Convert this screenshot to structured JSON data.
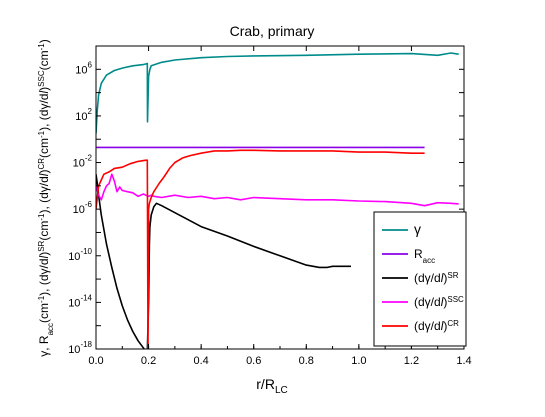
{
  "chart_data": {
    "type": "line",
    "title": "Crab, primary",
    "xlabel": {
      "main": "r/R",
      "sub": "LC"
    },
    "ylabel_parts": [
      {
        "t": "γ, R"
      },
      {
        "t": "acc",
        "s": "sub"
      },
      {
        "t": "(cm"
      },
      {
        "t": "-1",
        "s": "sup"
      },
      {
        "t": "), (dγ/d"
      },
      {
        "t": "l",
        "s": "italic"
      },
      {
        "t": ")"
      },
      {
        "t": "SR",
        "s": "sup"
      },
      {
        "t": "(cm"
      },
      {
        "t": "-1",
        "s": "sup"
      },
      {
        "t": "), (dγ/d"
      },
      {
        "t": "l",
        "s": "italic"
      },
      {
        "t": ")"
      },
      {
        "t": "CR",
        "s": "sup"
      },
      {
        "t": "(cm"
      },
      {
        "t": "-1",
        "s": "sup"
      },
      {
        "t": "), (dγ/d"
      },
      {
        "t": "l",
        "s": "italic"
      },
      {
        "t": ")"
      },
      {
        "t": "SSC",
        "s": "sup"
      },
      {
        "t": "(cm"
      },
      {
        "t": "-1",
        "s": "sup"
      },
      {
        "t": ")"
      }
    ],
    "xlim": [
      0,
      1.4
    ],
    "ylim_log10": [
      -18,
      8
    ],
    "yscale": "log",
    "xticks": [
      "0.0",
      "0.2",
      "0.4",
      "0.6",
      "0.8",
      "1.0",
      "1.2",
      "1.4"
    ],
    "yticks": [
      {
        "base": "10",
        "exp": "-18",
        "v": -18
      },
      {
        "base": "10",
        "exp": "-14",
        "v": -14
      },
      {
        "base": "10",
        "exp": "-10",
        "v": -10
      },
      {
        "base": "10",
        "exp": "-6",
        "v": -6
      },
      {
        "base": "10",
        "exp": "-2",
        "v": -2
      },
      {
        "base": "10",
        "exp": "2",
        "v": 2
      },
      {
        "base": "10",
        "exp": "6",
        "v": 6
      }
    ],
    "legend_position": "bottom-right",
    "series": [
      {
        "name": "γ",
        "color": "#008b8b",
        "x": [
          0.0,
          0.005,
          0.01,
          0.02,
          0.04,
          0.07,
          0.1,
          0.14,
          0.18,
          0.195,
          0.196,
          0.2,
          0.205,
          0.21,
          0.25,
          0.3,
          0.4,
          0.5,
          0.6,
          0.8,
          1.0,
          1.2,
          1.3,
          1.35,
          1.38
        ],
        "y_log10": [
          0.5,
          2.5,
          3.8,
          4.8,
          5.5,
          5.9,
          6.1,
          6.3,
          6.4,
          6.5,
          1.5,
          5.4,
          6.0,
          6.3,
          6.6,
          6.8,
          7.0,
          7.1,
          7.15,
          7.2,
          7.3,
          7.35,
          7.2,
          7.4,
          7.3
        ]
      },
      {
        "name": "Racc",
        "name_main": "R",
        "name_sub": "acc",
        "color": "#8a00e6",
        "x": [
          0.0,
          1.25
        ],
        "y_log10": [
          -0.7,
          -0.7
        ]
      },
      {
        "name": "(dγ/dl)SR",
        "name_main": "(dγ/d",
        "name_italic": "l",
        "name_close": ")",
        "name_sup": "SR",
        "color": "#000000",
        "x": [
          0.0,
          0.005,
          0.01,
          0.02,
          0.04,
          0.06,
          0.08,
          0.1,
          0.12,
          0.14,
          0.16,
          0.18,
          0.19,
          0.195,
          0.2,
          0.203,
          0.205,
          0.21,
          0.22,
          0.23,
          0.25,
          0.3,
          0.4,
          0.5,
          0.6,
          0.7,
          0.8,
          0.85,
          0.88,
          0.9,
          0.95,
          0.97
        ],
        "y_log10": [
          -3.0,
          -3.8,
          -4.8,
          -6.5,
          -9.0,
          -11.0,
          -12.8,
          -14.3,
          -15.5,
          -16.5,
          -17.3,
          -17.9,
          -18.2,
          -18.3,
          -14.0,
          -9.0,
          -7.5,
          -6.5,
          -5.8,
          -5.5,
          -5.7,
          -6.3,
          -7.5,
          -8.3,
          -9.2,
          -10.0,
          -10.8,
          -11.0,
          -11.0,
          -10.9,
          -10.9,
          -10.9
        ]
      },
      {
        "name": "(dγ/dl)SSC",
        "name_main": "(dγ/d",
        "name_italic": "l",
        "name_close": ")",
        "name_sup": "SSC",
        "color": "#ff00ff",
        "x": [
          0.0,
          0.01,
          0.02,
          0.03,
          0.04,
          0.05,
          0.06,
          0.07,
          0.08,
          0.09,
          0.1,
          0.12,
          0.14,
          0.16,
          0.18,
          0.19,
          0.2,
          0.21,
          0.22,
          0.25,
          0.3,
          0.35,
          0.4,
          0.45,
          0.5,
          0.55,
          0.6,
          0.7,
          0.8,
          0.9,
          1.0,
          1.1,
          1.2,
          1.25,
          1.3,
          1.35,
          1.38
        ],
        "y_log10": [
          -4.0,
          -4.8,
          -5.2,
          -4.5,
          -4.0,
          -3.8,
          -3.0,
          -3.6,
          -4.5,
          -4.1,
          -4.4,
          -4.5,
          -4.6,
          -4.9,
          -4.7,
          -4.8,
          -4.9,
          -4.8,
          -4.9,
          -5.0,
          -4.8,
          -5.0,
          -4.9,
          -5.1,
          -5.0,
          -5.2,
          -5.0,
          -5.1,
          -5.2,
          -5.2,
          -5.3,
          -5.35,
          -5.5,
          -5.7,
          -5.45,
          -5.5,
          -5.55
        ]
      },
      {
        "name": "(dγ/dl)CR",
        "name_main": "(dγ/d",
        "name_italic": "l",
        "name_close": ")",
        "name_sup": "CR",
        "color": "#ff0000",
        "x": [
          0.0,
          0.005,
          0.01,
          0.02,
          0.03,
          0.05,
          0.07,
          0.1,
          0.13,
          0.16,
          0.19,
          0.195,
          0.196,
          0.198,
          0.2,
          0.203,
          0.21,
          0.22,
          0.24,
          0.26,
          0.28,
          0.3,
          0.33,
          0.36,
          0.4,
          0.45,
          0.5,
          0.55,
          0.6,
          0.7,
          0.8,
          0.9,
          1.0,
          1.1,
          1.2,
          1.25
        ],
        "y_log10": [
          -6.0,
          -5.0,
          -4.0,
          -3.5,
          -3.0,
          -2.8,
          -2.5,
          -2.4,
          -2.1,
          -1.9,
          -1.8,
          -1.8,
          -6.0,
          -18.0,
          -6.0,
          -5.5,
          -5.0,
          -4.5,
          -3.8,
          -3.2,
          -2.5,
          -2.0,
          -1.6,
          -1.4,
          -1.2,
          -1.0,
          -1.0,
          -0.95,
          -0.95,
          -1.0,
          -1.0,
          -1.0,
          -1.1,
          -1.1,
          -1.2,
          -1.2
        ]
      }
    ]
  }
}
